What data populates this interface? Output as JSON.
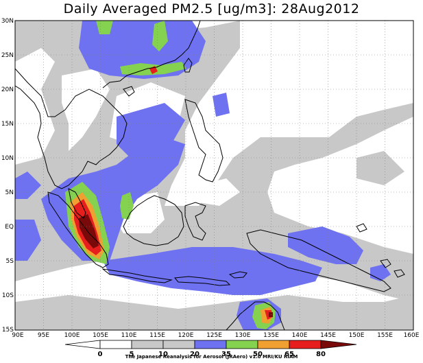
{
  "title": "Daily Averaged PM2.5 [ug/m3]: 28Aug2012",
  "map": {
    "lon_range": [
      90,
      160
    ],
    "lat_range": [
      -15,
      30
    ],
    "lon_ticks": [
      "90E",
      "95E",
      "100E",
      "105E",
      "110E",
      "115E",
      "120E",
      "125E",
      "130E",
      "135E",
      "140E",
      "145E",
      "150E",
      "155E",
      "160E"
    ],
    "lat_ticks": [
      "30N",
      "25N",
      "20N",
      "15N",
      "10N",
      "5N",
      "EQ",
      "5S",
      "10S",
      "15S"
    ],
    "grid": "dotted",
    "colors": {
      "c0_5": "#ffffff",
      "c5_10": "#ffffff",
      "c10_20": "#c8c8c8",
      "c20_35": "#6e72f0",
      "c35_50": "#84d250",
      "c50_65": "#f0a030",
      "c65_80": "#e61e1e",
      "c80": "#7a0a0a"
    }
  },
  "colorbar": {
    "labels": [
      "0",
      "5",
      "10",
      "20",
      "35",
      "50",
      "65",
      "80"
    ],
    "colors": [
      "#ffffff",
      "#ffffff",
      "#c8c8c8",
      "#6e72f0",
      "#84d250",
      "#f0a030",
      "#e61e1e",
      "#7a0a0a"
    ]
  },
  "credit": "The Japanese Reanalysis for Aerosol (JRAero) v1.0 MRI/KU RIAM"
}
